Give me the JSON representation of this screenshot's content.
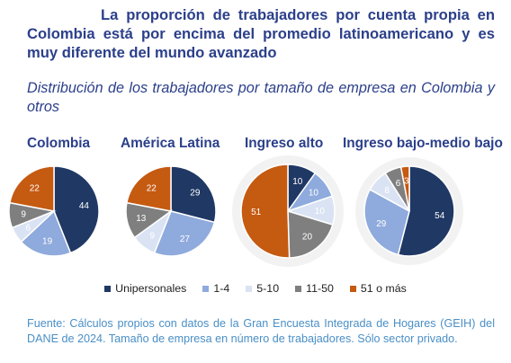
{
  "title": "La proporción de trabajadores por cuenta propia en Colombia está por encima del promedio latinoamericano y es muy diferente del mundo avanzado",
  "subtitle": "Distribución de los trabajadores por tamaño de empresa en Colombia y otros",
  "source": "Fuente: Cálculos propios con datos de la Gran Encuesta Integrada de Hogares (GEIH) del DANE de 2024. Tamaño de empresa en número de trabajadores. Sólo sector privado.",
  "colors": {
    "Unipersonales": "#203864",
    "1-4": "#8faadc",
    "5-10": "#dae3f3",
    "11-50": "#7f7f7f",
    "51 o más": "#c55a11"
  },
  "legend": [
    "Unipersonales",
    "1-4",
    "5-10",
    "11-50",
    "51 o más"
  ],
  "chart_data": [
    {
      "type": "pie",
      "title": "Colombia",
      "categories": [
        "Unipersonales",
        "1-4",
        "5-10",
        "11-50",
        "51 o más"
      ],
      "values": [
        44,
        19,
        6,
        9,
        22
      ],
      "labels": [
        "44",
        "19",
        "6",
        "9",
        "22"
      ],
      "highlighted": false
    },
    {
      "type": "pie",
      "title": "América Latina",
      "categories": [
        "Unipersonales",
        "1-4",
        "5-10",
        "11-50",
        "51 o más"
      ],
      "values": [
        29,
        27,
        9,
        13,
        22
      ],
      "labels": [
        "29",
        "27",
        "9",
        "13",
        "22"
      ],
      "highlighted": false
    },
    {
      "type": "pie",
      "title": "Ingreso alto",
      "categories": [
        "Unipersonales",
        "1-4",
        "5-10",
        "11-50",
        "51 o más"
      ],
      "values": [
        10,
        10,
        10,
        20,
        51
      ],
      "labels": [
        "10",
        "10",
        "10",
        "20",
        "51"
      ],
      "highlighted": true
    },
    {
      "type": "pie",
      "title": "Ingreso bajo-medio bajo",
      "categories": [
        "Unipersonales",
        "1-4",
        "5-10",
        "11-50",
        "51 o más"
      ],
      "values": [
        54,
        29,
        8,
        6,
        3
      ],
      "labels": [
        "54",
        "29",
        "8",
        "6",
        "3"
      ],
      "highlighted": true
    }
  ]
}
